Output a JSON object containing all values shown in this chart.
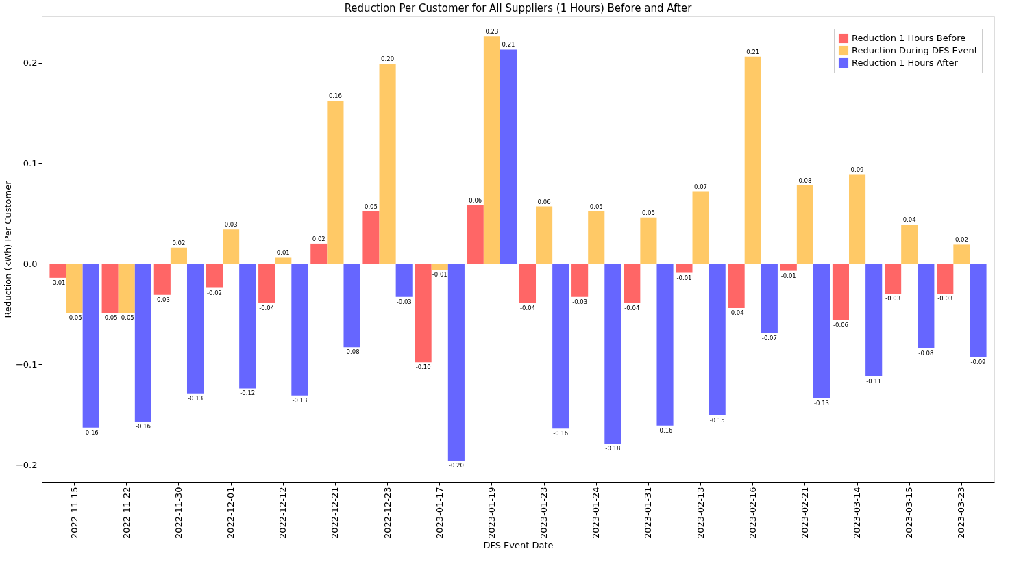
{
  "chart_data": {
    "type": "bar",
    "title": "Reduction Per Customer for All Suppliers (1 Hours) Before and After",
    "xlabel": "DFS Event Date",
    "ylabel": "Reduction (kWh) Per Customer",
    "categories": [
      "2022-11-15",
      "2022-11-22",
      "2022-11-30",
      "2022-12-01",
      "2022-12-12",
      "2022-12-21",
      "2022-12-23",
      "2023-01-17",
      "2023-01-19",
      "2023-01-23",
      "2023-01-24",
      "2023-01-31",
      "2023-02-13",
      "2023-02-16",
      "2023-02-21",
      "2023-03-14",
      "2023-03-15",
      "2023-03-23"
    ],
    "series": [
      {
        "name": "Reduction 1 Hours Before",
        "color": "#ff6666",
        "values": [
          -0.014,
          -0.049,
          -0.031,
          -0.024,
          -0.039,
          0.02,
          0.052,
          -0.098,
          0.058,
          -0.039,
          -0.033,
          -0.039,
          -0.009,
          -0.044,
          -0.007,
          -0.056,
          -0.03,
          -0.03
        ],
        "value_labels": [
          "-0.01",
          "-0.05",
          "-0.03",
          "-0.02",
          "-0.04",
          "0.02",
          "0.05",
          "-0.10",
          "0.06",
          "-0.04",
          "-0.03",
          "-0.04",
          "-0.01",
          "-0.04",
          "-0.01",
          "-0.06",
          "-0.03",
          "-0.03"
        ]
      },
      {
        "name": "Reduction During DFS Event",
        "color": "#ffc966",
        "values": [
          -0.049,
          -0.049,
          0.016,
          0.034,
          0.006,
          0.162,
          0.199,
          -0.006,
          0.226,
          0.057,
          0.052,
          0.046,
          0.072,
          0.206,
          0.078,
          0.089,
          0.039,
          0.019
        ],
        "value_labels": [
          "-0.05",
          "-0.05",
          "0.02",
          "0.03",
          "0.01",
          "0.16",
          "0.20",
          "-0.01",
          "0.23",
          "0.06",
          "0.05",
          "0.05",
          "0.07",
          "0.21",
          "0.08",
          "0.09",
          "0.04",
          "0.02"
        ]
      },
      {
        "name": "Reduction 1 Hours After",
        "color": "#6666ff",
        "values": [
          -0.163,
          -0.157,
          -0.129,
          -0.124,
          -0.131,
          -0.083,
          -0.033,
          -0.196,
          0.213,
          -0.164,
          -0.179,
          -0.161,
          -0.151,
          -0.069,
          -0.134,
          -0.112,
          -0.084,
          -0.093
        ],
        "value_labels": [
          "-0.16",
          "-0.16",
          "-0.13",
          "-0.12",
          "-0.13",
          "-0.08",
          "-0.03",
          "-0.20",
          "0.21",
          "-0.16",
          "-0.18",
          "-0.16",
          "-0.15",
          "-0.07",
          "-0.13",
          "-0.11",
          "-0.08",
          "-0.09"
        ]
      }
    ],
    "ylim": [
      -0.217,
      0.246
    ],
    "yticks": [
      {
        "value": -0.2,
        "label": "−0.2"
      },
      {
        "value": -0.1,
        "label": "−0.1"
      },
      {
        "value": 0.0,
        "label": "0.0"
      },
      0.1,
      0.2
    ],
    "legend": "top right",
    "grid": false
  }
}
